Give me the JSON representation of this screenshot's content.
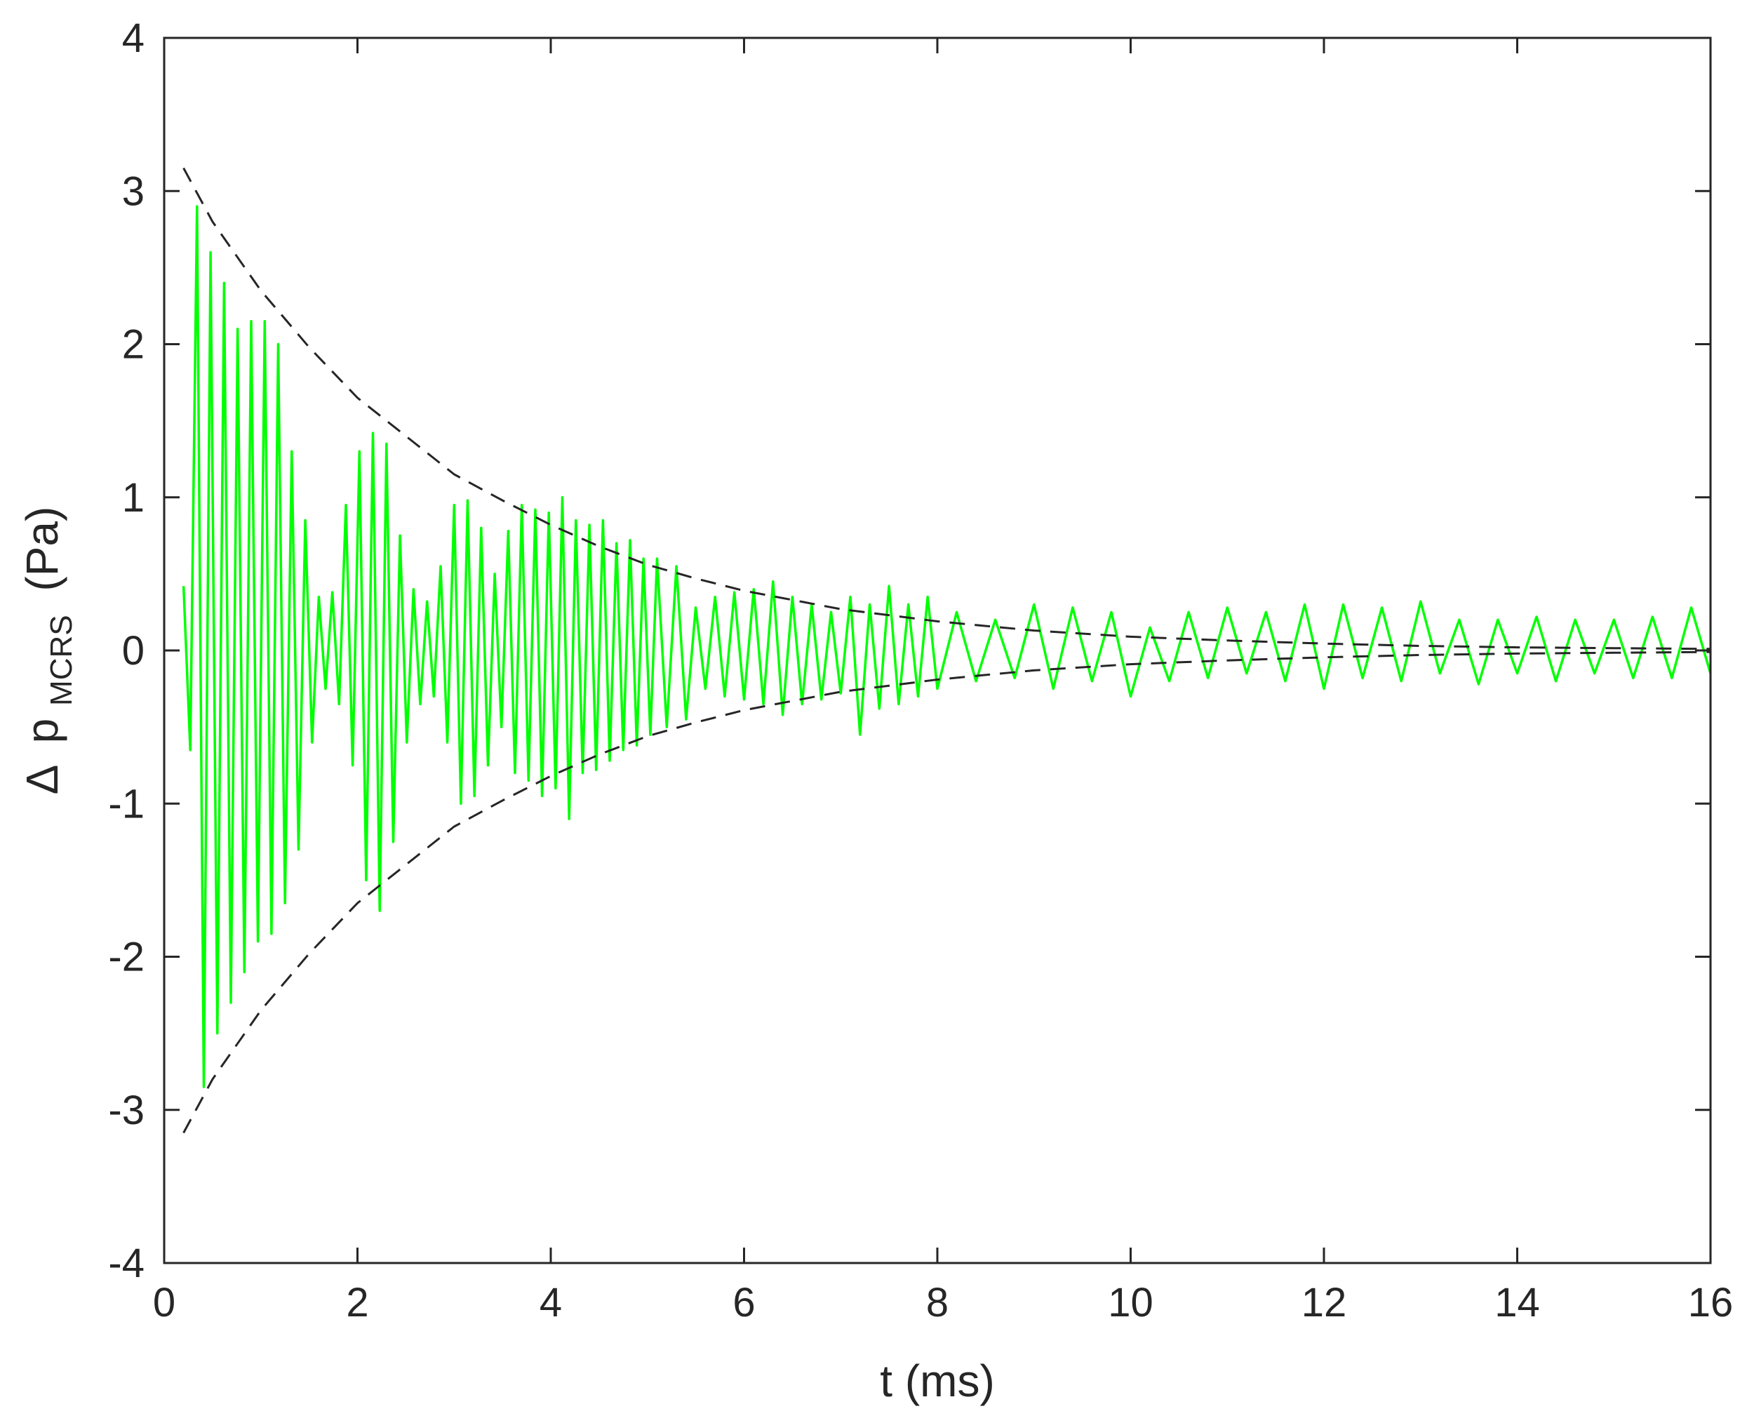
{
  "chart_data": {
    "type": "line",
    "title": "",
    "xlabel": "t (ms)",
    "ylabel": {
      "delta": "Δ",
      "symbol": "p",
      "subscript": "MCRS",
      "unit": "(Pa)"
    },
    "xlim": [
      0,
      16
    ],
    "ylim": [
      -4,
      4
    ],
    "xticks": [
      0,
      2,
      4,
      6,
      8,
      10,
      12,
      14,
      16
    ],
    "yticks": [
      -4,
      -3,
      -2,
      -1,
      0,
      1,
      2,
      3,
      4
    ],
    "xtick_labels": [
      "0",
      "2",
      "4",
      "6",
      "8",
      "10",
      "12",
      "14",
      "16"
    ],
    "ytick_labels": [
      "-4",
      "-3",
      "-2",
      "-1",
      "0",
      "1",
      "2",
      "3",
      "4"
    ],
    "grid": false,
    "box": true,
    "series": [
      {
        "style": "solid",
        "color": "#00ff00",
        "description": "measured pressure fluctuation, decaying oscillation with noise",
        "x": [
          0.2,
          0.27,
          0.34,
          0.41,
          0.48,
          0.55,
          0.62,
          0.69,
          0.76,
          0.83,
          0.9,
          0.97,
          1.04,
          1.11,
          1.18,
          1.25,
          1.32,
          1.39,
          1.46,
          1.53,
          1.6,
          1.67,
          1.74,
          1.81,
          1.88,
          1.95,
          2.02,
          2.09,
          2.16,
          2.23,
          2.3,
          2.37,
          2.44,
          2.51,
          2.58,
          2.65,
          2.72,
          2.79,
          2.86,
          2.93,
          3.0,
          3.07,
          3.14,
          3.21,
          3.28,
          3.35,
          3.42,
          3.49,
          3.56,
          3.63,
          3.7,
          3.77,
          3.84,
          3.91,
          3.98,
          4.05,
          4.12,
          4.19,
          4.26,
          4.33,
          4.4,
          4.47,
          4.54,
          4.61,
          4.68,
          4.75,
          4.82,
          4.89,
          4.96,
          5.03,
          5.1,
          5.2,
          5.3,
          5.4,
          5.5,
          5.6,
          5.7,
          5.8,
          5.9,
          6.0,
          6.1,
          6.2,
          6.3,
          6.4,
          6.5,
          6.6,
          6.7,
          6.8,
          6.9,
          7.0,
          7.1,
          7.2,
          7.3,
          7.4,
          7.5,
          7.6,
          7.7,
          7.8,
          7.9,
          8.0,
          8.2,
          8.4,
          8.6,
          8.8,
          9.0,
          9.2,
          9.4,
          9.6,
          9.8,
          10.0,
          10.2,
          10.4,
          10.6,
          10.8,
          11.0,
          11.2,
          11.4,
          11.6,
          11.8,
          12.0,
          12.2,
          12.4,
          12.6,
          12.8,
          13.0,
          13.2,
          13.4,
          13.6,
          13.8,
          14.0,
          14.2,
          14.4,
          14.6,
          14.8,
          15.0,
          15.2,
          15.4,
          15.6,
          15.8,
          16.0
        ],
        "y": [
          0.42,
          -0.65,
          2.9,
          -2.85,
          2.6,
          -2.5,
          2.4,
          -2.3,
          2.1,
          -2.1,
          2.15,
          -1.9,
          2.15,
          -1.85,
          2.0,
          -1.65,
          1.3,
          -1.3,
          0.85,
          -0.6,
          0.35,
          -0.25,
          0.38,
          -0.35,
          0.95,
          -0.75,
          1.3,
          -1.5,
          1.42,
          -1.7,
          1.35,
          -1.25,
          0.75,
          -0.6,
          0.4,
          -0.35,
          0.32,
          -0.3,
          0.55,
          -0.6,
          0.95,
          -1.0,
          0.98,
          -0.95,
          0.8,
          -0.75,
          0.5,
          -0.5,
          0.78,
          -0.8,
          0.95,
          -0.85,
          0.92,
          -0.95,
          0.9,
          -0.9,
          1.0,
          -1.1,
          0.85,
          -0.8,
          0.82,
          -0.78,
          0.85,
          -0.72,
          0.7,
          -0.65,
          0.72,
          -0.62,
          0.6,
          -0.55,
          0.6,
          -0.5,
          0.55,
          -0.45,
          0.28,
          -0.25,
          0.35,
          -0.3,
          0.38,
          -0.32,
          0.4,
          -0.35,
          0.45,
          -0.42,
          0.35,
          -0.35,
          0.3,
          -0.32,
          0.25,
          -0.28,
          0.35,
          -0.55,
          0.3,
          -0.38,
          0.42,
          -0.35,
          0.3,
          -0.3,
          0.35,
          -0.25,
          0.25,
          -0.2,
          0.2,
          -0.18,
          0.3,
          -0.25,
          0.28,
          -0.2,
          0.25,
          -0.3,
          0.15,
          -0.2,
          0.25,
          -0.18,
          0.28,
          -0.15,
          0.25,
          -0.2,
          0.3,
          -0.25,
          0.3,
          -0.18,
          0.28,
          -0.2,
          0.32,
          -0.15,
          0.2,
          -0.22,
          0.2,
          -0.15,
          0.22,
          -0.2,
          0.2,
          -0.15,
          0.2,
          -0.18,
          0.22,
          -0.18,
          0.28,
          -0.15
        ]
      },
      {
        "style": "dashed",
        "color": "#262626",
        "description": "upper exponential envelope",
        "x": [
          0.2,
          0.5,
          1,
          1.5,
          2,
          2.5,
          3,
          3.5,
          4,
          4.5,
          5,
          5.5,
          6,
          6.5,
          7,
          7.5,
          8,
          8.5,
          9,
          10,
          11,
          12,
          13,
          14,
          15,
          16
        ],
        "y": [
          3.15,
          2.8,
          2.35,
          1.98,
          1.65,
          1.4,
          1.15,
          0.98,
          0.82,
          0.68,
          0.56,
          0.47,
          0.39,
          0.33,
          0.27,
          0.23,
          0.19,
          0.16,
          0.13,
          0.09,
          0.065,
          0.045,
          0.03,
          0.02,
          0.015,
          0.01
        ]
      },
      {
        "style": "dashed",
        "color": "#262626",
        "description": "lower exponential envelope",
        "x": [
          0.2,
          0.5,
          1,
          1.5,
          2,
          2.5,
          3,
          3.5,
          4,
          4.5,
          5,
          5.5,
          6,
          6.5,
          7,
          7.5,
          8,
          8.5,
          9,
          10,
          11,
          12,
          13,
          14,
          15,
          16
        ],
        "y": [
          -3.15,
          -2.8,
          -2.35,
          -1.98,
          -1.65,
          -1.4,
          -1.15,
          -0.98,
          -0.82,
          -0.68,
          -0.56,
          -0.47,
          -0.39,
          -0.33,
          -0.27,
          -0.23,
          -0.19,
          -0.16,
          -0.13,
          -0.09,
          -0.065,
          -0.045,
          -0.03,
          -0.02,
          -0.015,
          -0.01
        ]
      }
    ]
  }
}
